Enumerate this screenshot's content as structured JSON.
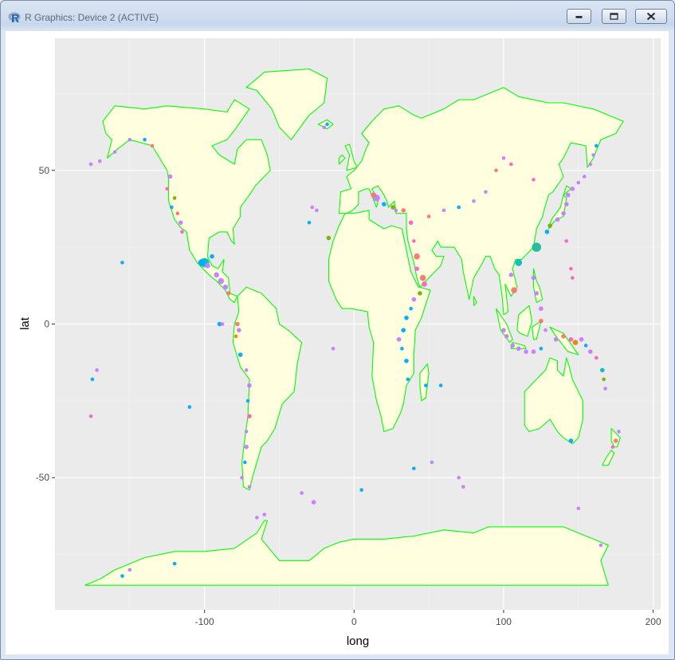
{
  "window": {
    "title": "R Graphics: Device 2 (ACTIVE)",
    "icon": "r-logo-icon",
    "buttons": [
      "minimize-icon",
      "maximize-icon",
      "close-icon"
    ]
  },
  "chart_data": {
    "type": "scatter",
    "title": "",
    "xlabel": "long",
    "ylabel": "lat",
    "xlim": [
      -200,
      205
    ],
    "ylim": [
      -93,
      93
    ],
    "xticks": [
      -100,
      0,
      100,
      200
    ],
    "yticks": [
      -50,
      0,
      50
    ],
    "grid": true,
    "background": "#ebebeb",
    "land_fill": "#ffffe0",
    "border_color": "#00ff00",
    "legend": "none",
    "point_colors": [
      "#f8766d",
      "#00bfc4",
      "#c77cff",
      "#7cae00",
      "#00a9ff",
      "#ff61c3",
      "#e58700"
    ],
    "points": [
      {
        "x": -100,
        "y": 20,
        "size": 10,
        "color": "#00bfc4"
      },
      {
        "x": -102,
        "y": 20,
        "size": 7,
        "color": "#00a9ff"
      },
      {
        "x": -98,
        "y": 19,
        "size": 5,
        "color": "#c77cff"
      },
      {
        "x": -95,
        "y": 22,
        "size": 4,
        "color": "#00a9ff"
      },
      {
        "x": -92,
        "y": 16,
        "size": 5,
        "color": "#c77cff"
      },
      {
        "x": -89,
        "y": 14,
        "size": 6,
        "color": "#c77cff"
      },
      {
        "x": -86,
        "y": 12,
        "size": 5,
        "color": "#c77cff"
      },
      {
        "x": -84,
        "y": 10,
        "size": 4,
        "color": "#f8766d"
      },
      {
        "x": -90,
        "y": 0,
        "size": 4,
        "color": "#00a9ff"
      },
      {
        "x": -88,
        "y": 0,
        "size": 3,
        "color": "#c77cff"
      },
      {
        "x": -78,
        "y": 0,
        "size": 4,
        "color": "#f8766d"
      },
      {
        "x": -77,
        "y": -2,
        "size": 4,
        "color": "#c77cff"
      },
      {
        "x": -79,
        "y": -4,
        "size": 3,
        "color": "#e58700"
      },
      {
        "x": -76,
        "y": -10,
        "size": 4,
        "color": "#00a9ff"
      },
      {
        "x": -72,
        "y": -15,
        "size": 3,
        "color": "#c77cff"
      },
      {
        "x": -70,
        "y": -20,
        "size": 4,
        "color": "#c77cff"
      },
      {
        "x": -71,
        "y": -25,
        "size": 3,
        "color": "#00a9ff"
      },
      {
        "x": -70,
        "y": -30,
        "size": 4,
        "color": "#ff61c3"
      },
      {
        "x": -72,
        "y": -35,
        "size": 3,
        "color": "#c77cff"
      },
      {
        "x": -72,
        "y": -40,
        "size": 4,
        "color": "#c77cff"
      },
      {
        "x": -73,
        "y": -45,
        "size": 3,
        "color": "#00a9ff"
      },
      {
        "x": -75,
        "y": -50,
        "size": 3,
        "color": "#c77cff"
      },
      {
        "x": -70,
        "y": -53,
        "size": 3,
        "color": "#c77cff"
      },
      {
        "x": -123,
        "y": 48,
        "size": 4,
        "color": "#c77cff"
      },
      {
        "x": -125,
        "y": 44,
        "size": 3,
        "color": "#ff61c3"
      },
      {
        "x": -118,
        "y": 36,
        "size": 3,
        "color": "#f8766d"
      },
      {
        "x": -116,
        "y": 33,
        "size": 4,
        "color": "#c77cff"
      },
      {
        "x": -122,
        "y": 38,
        "size": 3,
        "color": "#00a9ff"
      },
      {
        "x": -120,
        "y": 41,
        "size": 3,
        "color": "#7cae00"
      },
      {
        "x": -115,
        "y": 30,
        "size": 3,
        "color": "#ff61c3"
      },
      {
        "x": -150,
        "y": 60,
        "size": 3,
        "color": "#c77cff"
      },
      {
        "x": -160,
        "y": 56,
        "size": 3,
        "color": "#c77cff"
      },
      {
        "x": -170,
        "y": 53,
        "size": 3,
        "color": "#c77cff"
      },
      {
        "x": -176,
        "y": 52,
        "size": 3,
        "color": "#c77cff"
      },
      {
        "x": -140,
        "y": 60,
        "size": 3,
        "color": "#00a9ff"
      },
      {
        "x": -135,
        "y": 58,
        "size": 3,
        "color": "#f8766d"
      },
      {
        "x": -155,
        "y": 20,
        "size": 3,
        "color": "#00a9ff"
      },
      {
        "x": -172,
        "y": -15,
        "size": 3,
        "color": "#c77cff"
      },
      {
        "x": -175,
        "y": -18,
        "size": 3,
        "color": "#00a9ff"
      },
      {
        "x": -176,
        "y": -30,
        "size": 3,
        "color": "#ff61c3"
      },
      {
        "x": -110,
        "y": -27,
        "size": 3,
        "color": "#00a9ff"
      },
      {
        "x": -20,
        "y": 64,
        "size": 3,
        "color": "#c77cff"
      },
      {
        "x": -18,
        "y": 65,
        "size": 3,
        "color": "#00a9ff"
      },
      {
        "x": -28,
        "y": 38,
        "size": 3,
        "color": "#c77cff"
      },
      {
        "x": -25,
        "y": 37,
        "size": 3,
        "color": "#c77cff"
      },
      {
        "x": -30,
        "y": 33,
        "size": 3,
        "color": "#00a9ff"
      },
      {
        "x": -17,
        "y": 28,
        "size": 4,
        "color": "#7cae00"
      },
      {
        "x": -14,
        "y": -8,
        "size": 3,
        "color": "#c77cff"
      },
      {
        "x": -35,
        "y": -55,
        "size": 3,
        "color": "#c77cff"
      },
      {
        "x": -27,
        "y": -58,
        "size": 4,
        "color": "#c77cff"
      },
      {
        "x": 5,
        "y": -54,
        "size": 3,
        "color": "#00a9ff"
      },
      {
        "x": 15,
        "y": 41,
        "size": 7,
        "color": "#c77cff"
      },
      {
        "x": 13,
        "y": 42,
        "size": 5,
        "color": "#f8766d"
      },
      {
        "x": 20,
        "y": 39,
        "size": 4,
        "color": "#00a9ff"
      },
      {
        "x": 26,
        "y": 38,
        "size": 4,
        "color": "#7cae00"
      },
      {
        "x": 28,
        "y": 37,
        "size": 3,
        "color": "#c77cff"
      },
      {
        "x": 33,
        "y": 37,
        "size": 4,
        "color": "#f8766d"
      },
      {
        "x": 38,
        "y": 33,
        "size": 4,
        "color": "#ff61c3"
      },
      {
        "x": 40,
        "y": 27,
        "size": 3,
        "color": "#ff61c3"
      },
      {
        "x": 42,
        "y": 22,
        "size": 6,
        "color": "#f8766d"
      },
      {
        "x": 42,
        "y": 18,
        "size": 4,
        "color": "#ff61c3"
      },
      {
        "x": 46,
        "y": 15,
        "size": 6,
        "color": "#f8766d"
      },
      {
        "x": 47,
        "y": 13,
        "size": 5,
        "color": "#ff61c3"
      },
      {
        "x": 44,
        "y": 10,
        "size": 4,
        "color": "#7cae00"
      },
      {
        "x": 40,
        "y": 8,
        "size": 4,
        "color": "#c77cff"
      },
      {
        "x": 38,
        "y": 5,
        "size": 3,
        "color": "#00a9ff"
      },
      {
        "x": 35,
        "y": 2,
        "size": 4,
        "color": "#00a9ff"
      },
      {
        "x": 33,
        "y": -2,
        "size": 4,
        "color": "#00a9ff"
      },
      {
        "x": 30,
        "y": -5,
        "size": 4,
        "color": "#c77cff"
      },
      {
        "x": 32,
        "y": -8,
        "size": 3,
        "color": "#00a9ff"
      },
      {
        "x": 35,
        "y": -12,
        "size": 4,
        "color": "#00a9ff"
      },
      {
        "x": 36,
        "y": -18,
        "size": 3,
        "color": "#00a9ff"
      },
      {
        "x": 48,
        "y": -20,
        "size": 3,
        "color": "#00a9ff"
      },
      {
        "x": 52,
        "y": -45,
        "size": 3,
        "color": "#c77cff"
      },
      {
        "x": 40,
        "y": -47,
        "size": 3,
        "color": "#00a9ff"
      },
      {
        "x": 73,
        "y": -53,
        "size": 3,
        "color": "#c77cff"
      },
      {
        "x": 70,
        "y": -50,
        "size": 3,
        "color": "#c77cff"
      },
      {
        "x": 58,
        "y": -20,
        "size": 3,
        "color": "#00a9ff"
      },
      {
        "x": 122,
        "y": 25,
        "size": 10,
        "color": "#1abc9c"
      },
      {
        "x": 110,
        "y": 20,
        "size": 7,
        "color": "#00bfc4"
      },
      {
        "x": 107,
        "y": 11,
        "size": 6,
        "color": "#f8766d"
      },
      {
        "x": 105,
        "y": 16,
        "size": 4,
        "color": "#c77cff"
      },
      {
        "x": 120,
        "y": 15,
        "size": 4,
        "color": "#c77cff"
      },
      {
        "x": 122,
        "y": 10,
        "size": 4,
        "color": "#c77cff"
      },
      {
        "x": 125,
        "y": 5,
        "size": 4,
        "color": "#c77cff"
      },
      {
        "x": 125,
        "y": 1,
        "size": 4,
        "color": "#f8766d"
      },
      {
        "x": 128,
        "y": -2,
        "size": 3,
        "color": "#c77cff"
      },
      {
        "x": 100,
        "y": -2,
        "size": 4,
        "color": "#c77cff"
      },
      {
        "x": 102,
        "y": -4,
        "size": 4,
        "color": "#c77cff"
      },
      {
        "x": 106,
        "y": -7,
        "size": 4,
        "color": "#c77cff"
      },
      {
        "x": 110,
        "y": -8,
        "size": 4,
        "color": "#c77cff"
      },
      {
        "x": 115,
        "y": -9,
        "size": 4,
        "color": "#c77cff"
      },
      {
        "x": 120,
        "y": -9,
        "size": 4,
        "color": "#c77cff"
      },
      {
        "x": 125,
        "y": -8,
        "size": 3,
        "color": "#00a9ff"
      },
      {
        "x": 135,
        "y": -5,
        "size": 4,
        "color": "#c77cff"
      },
      {
        "x": 140,
        "y": -4,
        "size": 4,
        "color": "#f8766d"
      },
      {
        "x": 145,
        "y": -5,
        "size": 4,
        "color": "#ff61c3"
      },
      {
        "x": 148,
        "y": -6,
        "size": 5,
        "color": "#e58700"
      },
      {
        "x": 152,
        "y": -5,
        "size": 4,
        "color": "#c77cff"
      },
      {
        "x": 155,
        "y": -7,
        "size": 3,
        "color": "#00a9ff"
      },
      {
        "x": 158,
        "y": -9,
        "size": 4,
        "color": "#c77cff"
      },
      {
        "x": 162,
        "y": -11,
        "size": 3,
        "color": "#ff61c3"
      },
      {
        "x": 166,
        "y": -15,
        "size": 4,
        "color": "#00bfc4"
      },
      {
        "x": 167,
        "y": -18,
        "size": 3,
        "color": "#7cae00"
      },
      {
        "x": 168,
        "y": -21,
        "size": 3,
        "color": "#c77cff"
      },
      {
        "x": 129,
        "y": 30,
        "size": 4,
        "color": "#00a9ff"
      },
      {
        "x": 131,
        "y": 32,
        "size": 4,
        "color": "#7cae00"
      },
      {
        "x": 136,
        "y": 34,
        "size": 4,
        "color": "#c77cff"
      },
      {
        "x": 140,
        "y": 36,
        "size": 4,
        "color": "#c77cff"
      },
      {
        "x": 142,
        "y": 39,
        "size": 4,
        "color": "#c77cff"
      },
      {
        "x": 143,
        "y": 42,
        "size": 4,
        "color": "#c77cff"
      },
      {
        "x": 146,
        "y": 44,
        "size": 4,
        "color": "#c77cff"
      },
      {
        "x": 150,
        "y": 46,
        "size": 3,
        "color": "#c77cff"
      },
      {
        "x": 154,
        "y": 48,
        "size": 3,
        "color": "#c77cff"
      },
      {
        "x": 158,
        "y": 52,
        "size": 3,
        "color": "#c77cff"
      },
      {
        "x": 160,
        "y": 55,
        "size": 3,
        "color": "#c77cff"
      },
      {
        "x": 162,
        "y": 58,
        "size": 3,
        "color": "#00a9ff"
      },
      {
        "x": 142,
        "y": 27,
        "size": 3,
        "color": "#ff61c3"
      },
      {
        "x": 145,
        "y": 18,
        "size": 3,
        "color": "#ff61c3"
      },
      {
        "x": 146,
        "y": 15,
        "size": 3,
        "color": "#ff61c3"
      },
      {
        "x": 120,
        "y": 47,
        "size": 3,
        "color": "#ff61c3"
      },
      {
        "x": 105,
        "y": 52,
        "size": 3,
        "color": "#ff61c3"
      },
      {
        "x": 100,
        "y": 54,
        "size": 3,
        "color": "#c77cff"
      },
      {
        "x": 95,
        "y": 50,
        "size": 3,
        "color": "#f8766d"
      },
      {
        "x": 88,
        "y": 43,
        "size": 3,
        "color": "#c77cff"
      },
      {
        "x": 80,
        "y": 40,
        "size": 3,
        "color": "#c77cff"
      },
      {
        "x": 70,
        "y": 38,
        "size": 3,
        "color": "#00a9ff"
      },
      {
        "x": 60,
        "y": 37,
        "size": 3,
        "color": "#c77cff"
      },
      {
        "x": 50,
        "y": 35,
        "size": 3,
        "color": "#f8766d"
      },
      {
        "x": 145,
        "y": -38,
        "size": 4,
        "color": "#00a9ff"
      },
      {
        "x": 175,
        "y": -38,
        "size": 4,
        "color": "#f8766d"
      },
      {
        "x": 173,
        "y": -40,
        "size": 3,
        "color": "#ff61c3"
      },
      {
        "x": 177,
        "y": -35,
        "size": 3,
        "color": "#c77cff"
      },
      {
        "x": 150,
        "y": -60,
        "size": 3,
        "color": "#c77cff"
      },
      {
        "x": -155,
        "y": -82,
        "size": 3,
        "color": "#00a9ff"
      },
      {
        "x": -150,
        "y": -80,
        "size": 3,
        "color": "#c77cff"
      },
      {
        "x": -120,
        "y": -78,
        "size": 3,
        "color": "#00a9ff"
      },
      {
        "x": -65,
        "y": -63,
        "size": 3,
        "color": "#c77cff"
      },
      {
        "x": -60,
        "y": -62,
        "size": 3,
        "color": "#c77cff"
      },
      {
        "x": 165,
        "y": -72,
        "size": 3,
        "color": "#c77cff"
      }
    ]
  }
}
